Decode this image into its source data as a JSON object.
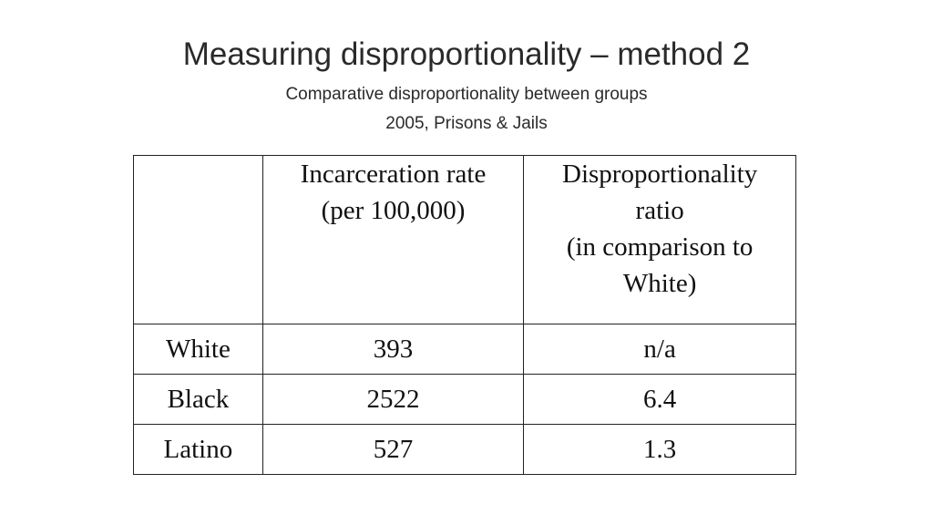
{
  "slide": {
    "title": "Measuring disproportionality – method 2",
    "subtitle_line1": "Comparative disproportionality between groups",
    "subtitle_line2": "2005, Prisons & Jails"
  },
  "table": {
    "corner": "",
    "header_rate": [
      "Incarceration rate",
      "(per 100,000)"
    ],
    "header_ratio": [
      "Disproportionality",
      "ratio",
      "(in comparison to",
      "White)"
    ],
    "rows": [
      {
        "group": "White",
        "rate": "393",
        "ratio": "n/a"
      },
      {
        "group": "Black",
        "rate": "2522",
        "ratio": "6.4"
      },
      {
        "group": "Latino",
        "rate": "527",
        "ratio": "1.3"
      }
    ]
  }
}
